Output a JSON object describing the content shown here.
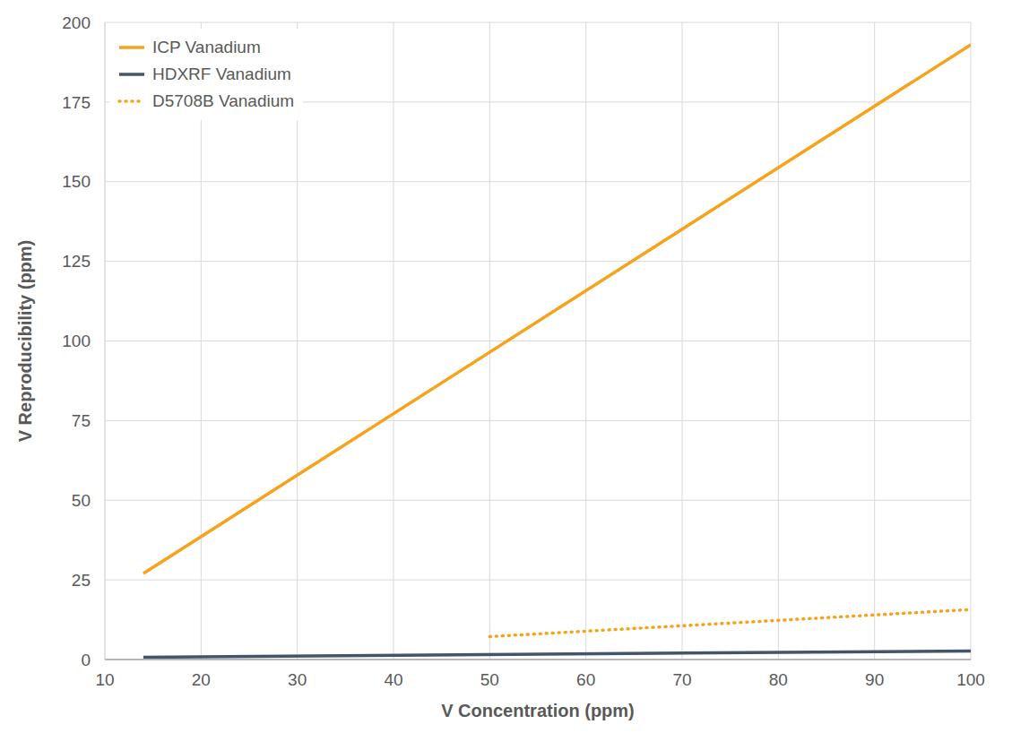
{
  "chart_data": {
    "type": "line",
    "xlabel": "V Concentration (ppm)",
    "ylabel": "V Reproducibility (ppm)",
    "xlim": [
      10,
      100
    ],
    "xticks": [
      10,
      20,
      30,
      40,
      50,
      60,
      70,
      80,
      90,
      100
    ],
    "ylim": [
      0,
      200
    ],
    "yticks": [
      0,
      25,
      50,
      75,
      100,
      125,
      150,
      175,
      200
    ],
    "grid": true,
    "legend": "upper left",
    "series": [
      {
        "name": "ICP Vanadium",
        "color": "#f7a21b",
        "line_style": "solid",
        "x": [
          14,
          100
        ],
        "values": [
          27,
          193
        ]
      },
      {
        "name": "HDXRF Vanadium",
        "color": "#44546a",
        "line_style": "solid",
        "x": [
          14,
          100
        ],
        "values": [
          0.7,
          2.7
        ]
      },
      {
        "name": "D5708B Vanadium",
        "color": "#f7a21b",
        "line_style": "dotted",
        "x": [
          50,
          100
        ],
        "values": [
          7.2,
          15.7
        ]
      }
    ]
  }
}
